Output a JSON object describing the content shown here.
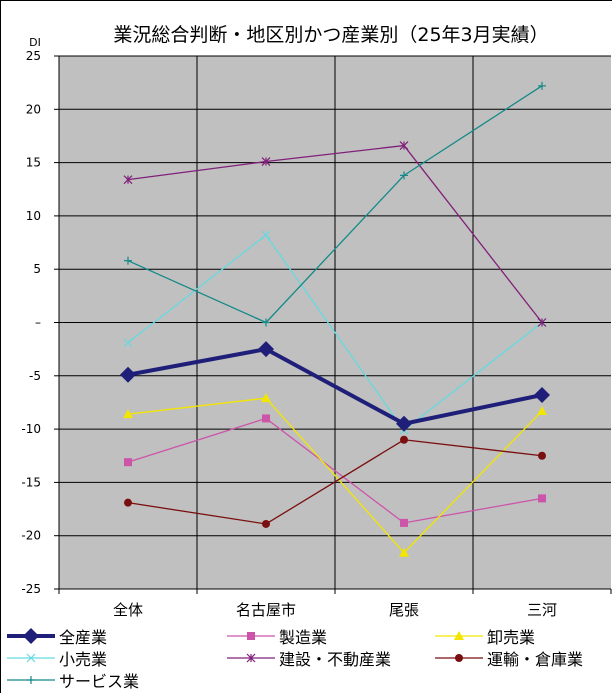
{
  "chart_data": {
    "type": "line",
    "title": "業況総合判断・地区別かつ産業別（25年3月実績）",
    "ylabel": "DI",
    "xlabel": "",
    "categories": [
      "全体",
      "名古屋市",
      "尾張",
      "三河"
    ],
    "ylim": [
      -25,
      25
    ],
    "yticks": [
      25,
      20,
      15,
      10,
      5,
      0,
      -5,
      -10,
      -15,
      -20,
      -25
    ],
    "ytick_labels": [
      "25",
      "20",
      "15",
      "10",
      "5",
      "–",
      "-5",
      "-10",
      "-15",
      "-20",
      "-25"
    ],
    "grid": true,
    "legend_position": "bottom",
    "series": [
      {
        "name": "全産業",
        "values": [
          -4.9,
          -2.5,
          -9.5,
          -6.8
        ],
        "color": "#1f1f7a",
        "marker": "diamond",
        "bold": true
      },
      {
        "name": "製造業",
        "values": [
          -13.1,
          -9.0,
          -18.8,
          -16.5
        ],
        "color": "#cc55aa",
        "marker": "square"
      },
      {
        "name": "卸売業",
        "values": [
          -8.6,
          -7.1,
          -21.6,
          -8.3
        ],
        "color": "#f2e600",
        "marker": "triangle"
      },
      {
        "name": "小売業",
        "values": [
          -1.9,
          8.2,
          -10.1,
          0.0
        ],
        "color": "#66d9e0",
        "marker": "x"
      },
      {
        "name": "建設・不動産業",
        "values": [
          13.4,
          15.1,
          16.6,
          0.0
        ],
        "color": "#80207a",
        "marker": "star"
      },
      {
        "name": "運輸・倉庫業",
        "values": [
          -16.9,
          -18.9,
          -11.0,
          -12.5
        ],
        "color": "#7a0f0f",
        "marker": "circle"
      },
      {
        "name": "サービス業",
        "values": [
          5.8,
          0.0,
          13.8,
          22.2
        ],
        "color": "#138a88",
        "marker": "plus"
      }
    ]
  }
}
